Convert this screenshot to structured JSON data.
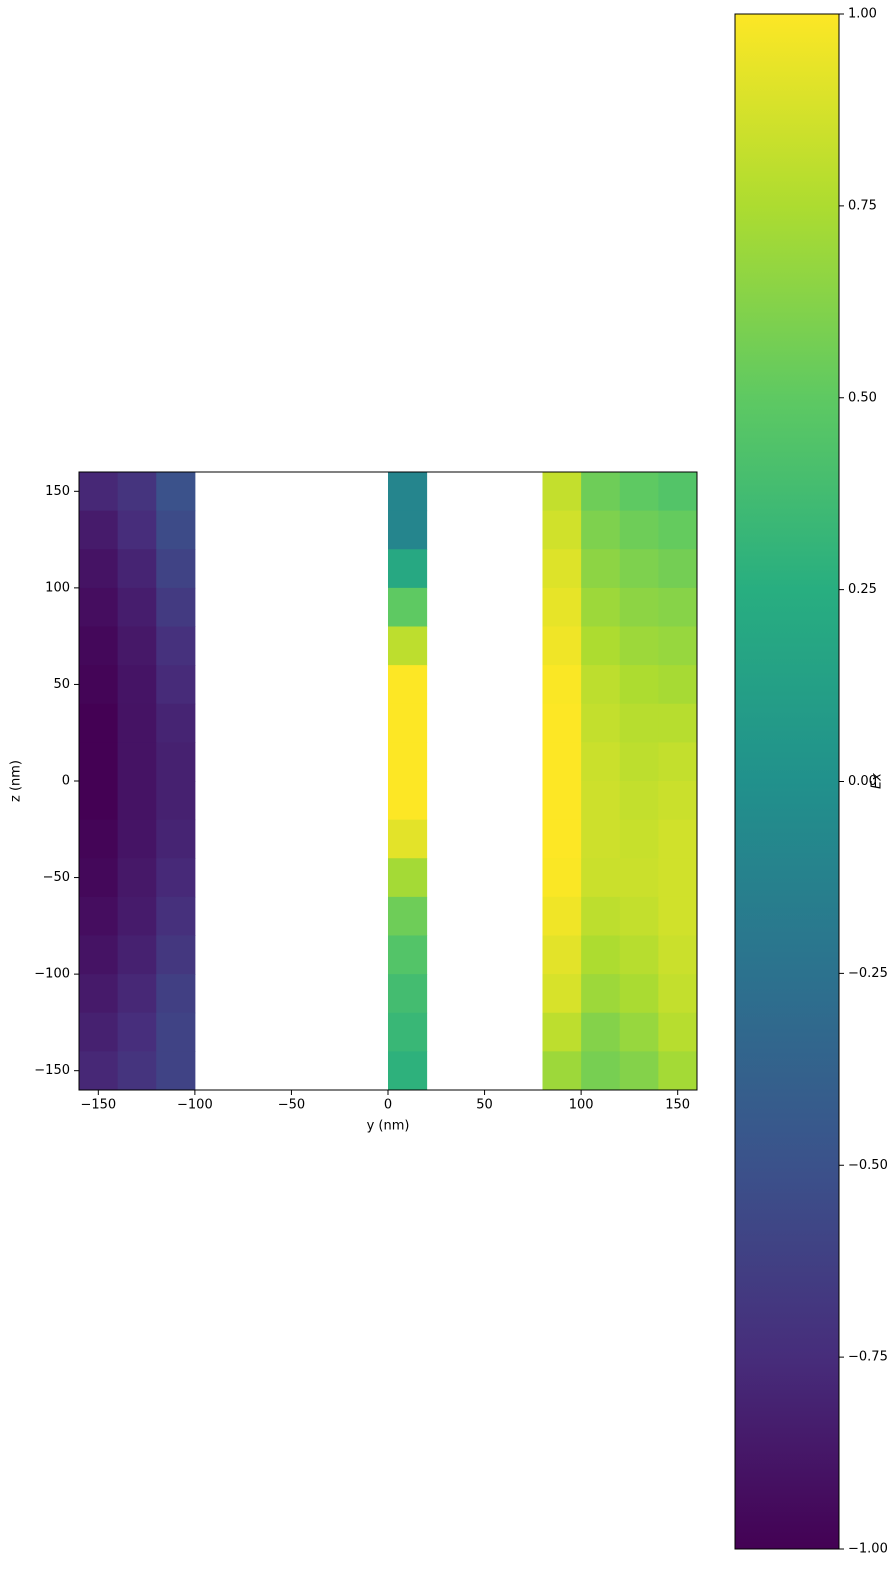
{
  "chart_data": {
    "type": "heatmap",
    "colormap": "viridis",
    "xlabel": "y (nm)",
    "ylabel": "z (nm)",
    "colorbar_label": "Ex",
    "xlim": [
      -160,
      160
    ],
    "ylim": [
      -160,
      160
    ],
    "xticks": [
      {
        "value": -150,
        "label": "−150"
      },
      {
        "value": -100,
        "label": "−100"
      },
      {
        "value": -50,
        "label": "−50"
      },
      0,
      50,
      100,
      150
    ],
    "yticks": [
      {
        "value": -150,
        "label": "−150"
      },
      {
        "value": -100,
        "label": "−100"
      },
      {
        "value": -50,
        "label": "−50"
      },
      0,
      50,
      100,
      150
    ],
    "clim": [
      -1,
      1
    ],
    "colorbar_ticks": [
      {
        "value": -1,
        "label": "−1.00"
      },
      {
        "value": -0.75,
        "label": "−0.75"
      },
      {
        "value": -0.5,
        "label": "−0.50"
      },
      {
        "value": -0.25,
        "label": "−0.25"
      },
      {
        "value": 0,
        "label": "0.00"
      },
      {
        "value": 0.25,
        "label": "0.25"
      },
      {
        "value": 0.5,
        "label": "0.50"
      },
      {
        "value": 0.75,
        "label": "0.75"
      },
      {
        "value": 1,
        "label": "1.00"
      }
    ],
    "x": [
      -150,
      -130,
      -110,
      -90,
      -70,
      -50,
      -30,
      -10,
      10,
      30,
      50,
      70,
      90,
      110,
      130,
      150
    ],
    "y": [
      150,
      130,
      110,
      90,
      70,
      50,
      30,
      10,
      -10,
      -30,
      -50,
      -70,
      -90,
      -110,
      -130,
      -150
    ],
    "z": [
      [
        -0.78,
        -0.7,
        -0.5,
        null,
        null,
        null,
        null,
        null,
        -0.1,
        null,
        null,
        null,
        0.82,
        0.55,
        0.5,
        0.45
      ],
      [
        -0.85,
        -0.75,
        -0.55,
        null,
        null,
        null,
        null,
        null,
        -0.1,
        null,
        null,
        null,
        0.86,
        0.6,
        0.55,
        0.52
      ],
      [
        -0.9,
        -0.8,
        -0.6,
        null,
        null,
        null,
        null,
        null,
        0.2,
        null,
        null,
        null,
        0.9,
        0.65,
        0.6,
        0.57
      ],
      [
        -0.93,
        -0.84,
        -0.66,
        null,
        null,
        null,
        null,
        null,
        0.5,
        null,
        null,
        null,
        0.93,
        0.7,
        0.65,
        0.63
      ],
      [
        -0.96,
        -0.87,
        -0.72,
        null,
        null,
        null,
        null,
        null,
        0.8,
        null,
        null,
        null,
        0.96,
        0.75,
        0.7,
        0.68
      ],
      [
        -0.98,
        -0.89,
        -0.76,
        null,
        null,
        null,
        null,
        null,
        1.0,
        null,
        null,
        null,
        0.99,
        0.8,
        0.75,
        0.73
      ],
      [
        -1.0,
        -0.9,
        -0.8,
        null,
        null,
        null,
        null,
        null,
        1.0,
        null,
        null,
        null,
        1.0,
        0.82,
        0.78,
        0.78
      ],
      [
        -1.0,
        -0.9,
        -0.82,
        null,
        null,
        null,
        null,
        null,
        1.0,
        null,
        null,
        null,
        1.0,
        0.84,
        0.8,
        0.82
      ],
      [
        -1.0,
        -0.9,
        -0.82,
        null,
        null,
        null,
        null,
        null,
        1.0,
        null,
        null,
        null,
        1.0,
        0.85,
        0.82,
        0.84
      ],
      [
        -0.98,
        -0.89,
        -0.8,
        null,
        null,
        null,
        null,
        null,
        0.92,
        null,
        null,
        null,
        1.0,
        0.85,
        0.83,
        0.86
      ],
      [
        -0.96,
        -0.87,
        -0.77,
        null,
        null,
        null,
        null,
        null,
        0.72,
        null,
        null,
        null,
        0.99,
        0.84,
        0.84,
        0.86
      ],
      [
        -0.93,
        -0.85,
        -0.73,
        null,
        null,
        null,
        null,
        null,
        0.55,
        null,
        null,
        null,
        0.96,
        0.8,
        0.82,
        0.86
      ],
      [
        -0.9,
        -0.82,
        -0.68,
        null,
        null,
        null,
        null,
        null,
        0.45,
        null,
        null,
        null,
        0.92,
        0.75,
        0.78,
        0.84
      ],
      [
        -0.86,
        -0.78,
        -0.63,
        null,
        null,
        null,
        null,
        null,
        0.38,
        null,
        null,
        null,
        0.88,
        0.7,
        0.74,
        0.82
      ],
      [
        -0.82,
        -0.74,
        -0.6,
        null,
        null,
        null,
        null,
        null,
        0.33,
        null,
        null,
        null,
        0.8,
        0.62,
        0.68,
        0.78
      ],
      [
        -0.78,
        -0.7,
        -0.6,
        null,
        null,
        null,
        null,
        null,
        0.28,
        null,
        null,
        null,
        0.7,
        0.58,
        0.62,
        0.72
      ]
    ]
  }
}
